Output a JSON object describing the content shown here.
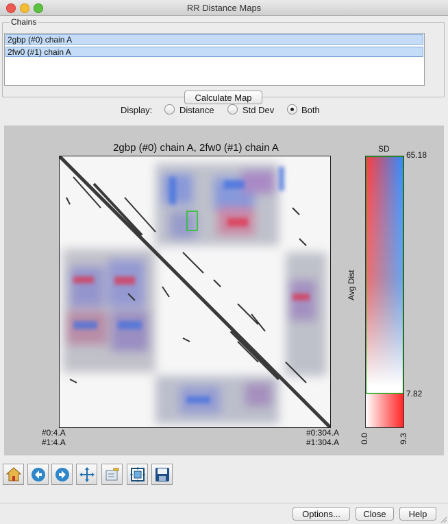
{
  "window": {
    "title": "RR Distance Maps"
  },
  "chains": {
    "legend": "Chains",
    "items": [
      {
        "label": "2gbp (#0) chain A"
      },
      {
        "label": "2fw0 (#1) chain A"
      }
    ],
    "calculate_label": "Calculate Map"
  },
  "display": {
    "label": "Display:",
    "options": [
      {
        "label": "Distance",
        "selected": false
      },
      {
        "label": "Std Dev",
        "selected": false
      },
      {
        "label": "Both",
        "selected": true
      }
    ]
  },
  "plot": {
    "title": "2gbp (#0) chain A, 2fw0 (#1) chain A",
    "corner_bottom_left": [
      "#0:4.A",
      "#1:4.A"
    ],
    "corner_bottom_right": [
      "#0:304.A",
      "#1:304.A"
    ],
    "colorbar": {
      "top_label": "SD",
      "side_label": "Avg Dist",
      "max_label": "65.18",
      "mid_label": "7.82",
      "xmin_label": "0.0",
      "xmax_label": "9.3",
      "colors": {
        "red": "#ff2a2a",
        "blue": "#1c86ff",
        "white": "#ffffff",
        "threshold_line": "#22aa22"
      }
    }
  },
  "toolbar": {
    "icons": [
      "home-icon",
      "back-arrow-icon",
      "forward-arrow-icon",
      "pan-move-icon",
      "edit-icon",
      "fit-zoom-icon",
      "save-disk-icon"
    ]
  },
  "buttons": {
    "options": "Options...",
    "close": "Close",
    "help": "Help"
  }
}
